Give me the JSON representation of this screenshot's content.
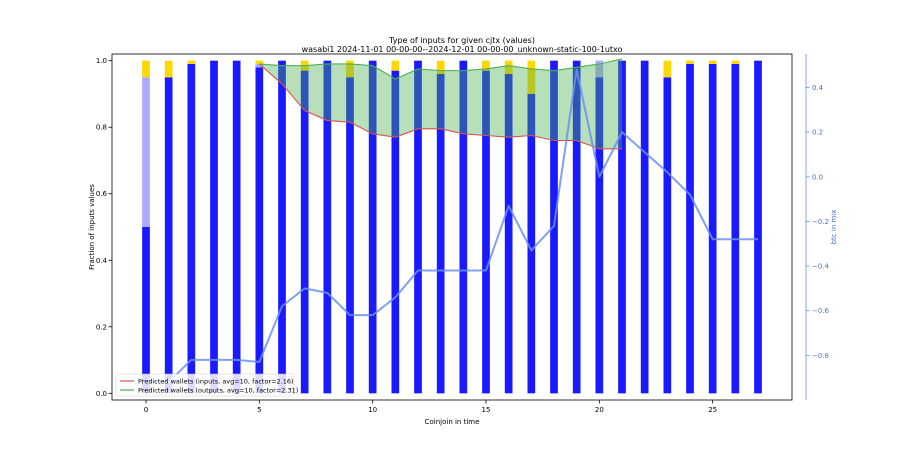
{
  "chart_data": {
    "type": "bar",
    "title": "Type of inputs for given cjtx (values)",
    "subtitle": "wasabi1 2024-11-01 00-00-00--2024-12-01 00-00-00_unknown-static-100-1utxo",
    "xlabel": "Coinjoin in time",
    "ylabel": "Fraction of inputs values",
    "y2label": "btc in mix",
    "xlim": [
      -1.5,
      28.5
    ],
    "ylim": [
      -0.02,
      1.02
    ],
    "y2lim": [
      -1.0,
      0.55
    ],
    "x_ticks": [
      0,
      5,
      10,
      15,
      20,
      25
    ],
    "y_ticks": [
      0.0,
      0.2,
      0.4,
      0.6,
      0.8,
      1.0
    ],
    "y2_ticks": [
      -0.8,
      -0.6,
      -0.4,
      -0.2,
      0.0,
      0.2,
      0.4
    ],
    "x": [
      0,
      1,
      2,
      3,
      4,
      5,
      6,
      7,
      8,
      9,
      10,
      11,
      12,
      13,
      14,
      15,
      16,
      17,
      18,
      19,
      20,
      21,
      22,
      23,
      24,
      25,
      26,
      27
    ],
    "series": [
      {
        "stack_values": [
          0.5,
          0.95,
          0.99,
          1.0,
          1.0,
          0.98,
          1.0,
          0.97,
          1.0,
          0.95,
          1.0,
          0.97,
          1.0,
          0.96,
          1.0,
          0.97,
          0.96,
          0.9,
          1.0,
          1.0,
          0.95,
          1.0,
          1.0,
          0.95,
          0.99,
          0.99,
          0.99,
          1.0
        ],
        "color": "#1a1aff"
      },
      {
        "stack_values": [
          0.45,
          0.0,
          0.0,
          0.0,
          0.0,
          0.01,
          0.0,
          0.0,
          0.0,
          0.0,
          0.0,
          0.0,
          0.0,
          0.0,
          0.0,
          0.0,
          0.0,
          0.0,
          0.0,
          0.0,
          0.05,
          0.0,
          0.0,
          0.0,
          0.0,
          0.0,
          0.0,
          0.0
        ],
        "color": "#aaaaff"
      },
      {
        "stack_values": [
          0.05,
          0.05,
          0.01,
          0.0,
          0.0,
          0.01,
          0.0,
          0.03,
          0.0,
          0.05,
          0.0,
          0.03,
          0.0,
          0.04,
          0.0,
          0.03,
          0.04,
          0.1,
          0.0,
          0.0,
          0.0,
          0.0,
          0.0,
          0.05,
          0.01,
          0.01,
          0.01,
          0.0
        ],
        "color": "#ffd700"
      }
    ],
    "line_series": [
      {
        "name": "Predicted wallets (inputs, avg=10, factor=2.16)",
        "color": "#d9534f",
        "x": [
          5,
          6,
          7,
          8,
          9,
          10,
          11,
          12,
          13,
          14,
          15,
          16,
          17,
          18,
          19,
          20,
          21
        ],
        "values": [
          0.99,
          0.93,
          0.85,
          0.82,
          0.815,
          0.78,
          0.77,
          0.795,
          0.795,
          0.78,
          0.775,
          0.77,
          0.775,
          0.76,
          0.76,
          0.735,
          0.735
        ]
      },
      {
        "name": "Predicted wallets (outputs, avg=10, factor=2.31)",
        "color": "#4caf50",
        "x": [
          5,
          6,
          7,
          8,
          9,
          10,
          11,
          12,
          13,
          14,
          15,
          16,
          17,
          18,
          19,
          20,
          21
        ],
        "values": [
          0.99,
          0.985,
          0.985,
          0.99,
          0.99,
          0.985,
          0.945,
          0.975,
          0.97,
          0.97,
          0.975,
          0.985,
          0.975,
          0.97,
          0.98,
          0.99,
          1.005
        ]
      }
    ],
    "secondary_line": {
      "axis": "right",
      "color": "#6b8ff0",
      "x": [
        0,
        1,
        2,
        3,
        4,
        5,
        6,
        7,
        8,
        9,
        10,
        11,
        12,
        13,
        14,
        15,
        16,
        17,
        18,
        19,
        20,
        21,
        22,
        23,
        24,
        25,
        26,
        27
      ],
      "values": [
        -0.92,
        -0.92,
        -0.82,
        -0.82,
        -0.82,
        -0.83,
        -0.58,
        -0.5,
        -0.52,
        -0.62,
        -0.62,
        -0.54,
        -0.42,
        -0.42,
        -0.42,
        -0.42,
        -0.13,
        -0.33,
        -0.22,
        0.48,
        0.0,
        0.2,
        0.11,
        0.02,
        -0.08,
        -0.28,
        -0.28,
        -0.28
      ]
    },
    "legend_position": "lower-left",
    "grid": false
  }
}
